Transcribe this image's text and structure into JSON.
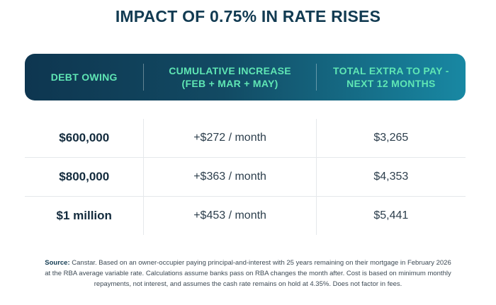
{
  "title": "IMPACT OF 0.75% IN RATE RISES",
  "table": {
    "headers": [
      [
        "DEBT OWING"
      ],
      [
        "CUMULATIVE INCREASE",
        "(FEB + MAR + MAY)"
      ],
      [
        "TOTAL EXTRA TO PAY -",
        "NEXT 12 MONTHS"
      ]
    ],
    "rows": [
      {
        "debt": "$600,000",
        "increase": "+$272 / month",
        "total": "$3,265"
      },
      {
        "debt": "$800,000",
        "increase": "+$363 / month",
        "total": "$4,353"
      },
      {
        "debt": "$1 million",
        "increase": "+$453 / month",
        "total": "$5,441"
      }
    ]
  },
  "footnote": {
    "label": "Source:",
    "text": " Canstar. Based on an owner-occupier paying principal-and-interest with 25 years remaining on their mortgage in February 2026 at the RBA average variable rate. Calculations assume banks pass on RBA changes the month after. Cost is based on minimum monthly repayments, not interest, and assumes the cash rate remains on hold at 4.35%. Does not factor in fees."
  },
  "colors": {
    "title": "#123b52",
    "header_start": "#0e3650",
    "header_end": "#1888a3",
    "header_text": "#5fe6b4"
  }
}
